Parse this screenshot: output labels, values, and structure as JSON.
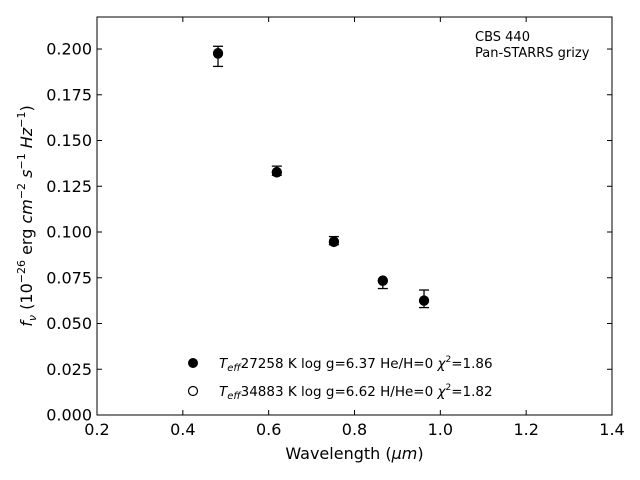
{
  "chart_data": {
    "type": "scatter",
    "xlabel_main": "Wavelength (",
    "xlabel_unit": "μm",
    "xlabel_close": ")",
    "ylabel": "f_ν (10^-26 erg cm^-2 s^-1 Hz^-1)",
    "xlim": [
      0.2,
      1.4
    ],
    "ylim": [
      0.0,
      0.2175
    ],
    "xticks": [
      0.2,
      0.4,
      0.6,
      0.8,
      1.0,
      1.2,
      1.4
    ],
    "xtick_labels": [
      "0.2",
      "0.4",
      "0.6",
      "0.8",
      "1.0",
      "1.2",
      "1.4"
    ],
    "yticks": [
      0.0,
      0.025,
      0.05,
      0.075,
      0.1,
      0.125,
      0.15,
      0.175,
      0.2
    ],
    "ytick_labels": [
      "0.000",
      "0.025",
      "0.050",
      "0.075",
      "0.100",
      "0.125",
      "0.150",
      "0.175",
      "0.200"
    ],
    "grid": false,
    "annotation": [
      "CBS 440",
      "Pan-STARRS grizy"
    ],
    "observed": {
      "x": [
        0.482,
        0.619,
        0.752,
        0.866,
        0.962
      ],
      "y": [
        0.196,
        0.1335,
        0.0953,
        0.0713,
        0.0635
      ],
      "yerr": [
        0.0055,
        0.0025,
        0.0022,
        0.0022,
        0.0048
      ]
    },
    "series": [
      {
        "marker": "filled-circle",
        "label": "T_eff= 27258 K  log g=6.37  He/H=0  χ²=1.86",
        "teff": "27258 K",
        "logg": "log g=6.37",
        "comp": "He/H=0",
        "chi2": "=1.86",
        "x": [
          0.482,
          0.619,
          0.752,
          0.866,
          0.962
        ],
        "y": [
          0.1975,
          0.1325,
          0.0945,
          0.0735,
          0.0625
        ]
      },
      {
        "marker": "open-circle",
        "label": "T_eff= 34883 K  log g=6.62  H/He=0  χ²=1.82",
        "teff": "34883 K",
        "logg": "log g=6.62",
        "comp": "H/He=0",
        "chi2": "=1.82",
        "x": [
          0.482,
          0.619,
          0.752,
          0.866,
          0.962
        ],
        "y": [
          0.1978,
          0.1328,
          0.0948,
          0.0733,
          0.0625
        ]
      }
    ],
    "legend_position": "lower-center",
    "colors": {
      "marker": "#000000",
      "axes": "#000000",
      "background": "#ffffff"
    }
  }
}
